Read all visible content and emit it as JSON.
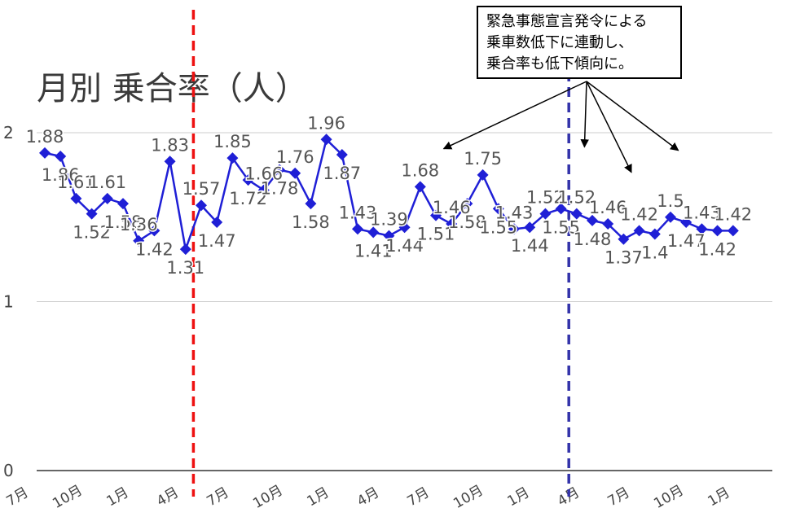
{
  "chart_data": {
    "type": "line",
    "title": "月別 乗合率（人）",
    "xlabel": "",
    "ylabel": "",
    "ylim": [
      0,
      2
    ],
    "yticks": [
      "0",
      "1",
      "2"
    ],
    "x_tick_labels": [
      "7月",
      "10月",
      "1月",
      "4月",
      "7月",
      "10月",
      "1月",
      "4月",
      "7月",
      "10月",
      "1月",
      "4月",
      "7月",
      "10月",
      "1月"
    ],
    "grid": true,
    "legend": "none",
    "series": [
      {
        "color": "#1f1fd6",
        "marker": "diamond",
        "values": [
          1.88,
          1.86,
          1.61,
          1.52,
          1.61,
          1.58,
          1.36,
          1.42,
          1.83,
          1.31,
          1.57,
          1.47,
          1.85,
          1.72,
          1.66,
          1.78,
          1.76,
          1.58,
          1.96,
          1.87,
          1.43,
          1.41,
          1.39,
          1.44,
          1.68,
          1.51,
          1.46,
          1.58,
          1.75,
          1.55,
          1.43,
          1.44,
          1.52,
          1.55,
          1.52,
          1.48,
          1.46,
          1.37,
          1.42,
          1.4,
          1.5,
          1.47,
          1.43,
          1.42,
          1.42
        ],
        "data_labels": [
          "1.88",
          "1.86",
          "1.61",
          "1.52",
          "1.61",
          "1.58",
          "1.36",
          "1.42",
          "1.83",
          "1.31",
          "1.57",
          "1.47",
          "1.85",
          "1.72",
          "1.66",
          "1.78",
          "1.76",
          "1.58",
          "1.96",
          "1.87",
          "1.43",
          "1.41",
          "1.39",
          "1.44",
          "1.68",
          "1.51",
          "1.46",
          "1.58",
          "1.75",
          "1.55",
          "1.43",
          "1.44",
          "1.52",
          "1.55",
          "1.52",
          "1.48",
          "1.46",
          "1.37",
          "1.42",
          "1.4",
          "1.5",
          "1.47",
          "1.43",
          "1.42",
          "1.42"
        ]
      }
    ],
    "reference_lines": [
      {
        "x_index": 9.5,
        "color": "#ee1111",
        "style": "dashed"
      },
      {
        "x_index": 33.5,
        "color": "#3333aa",
        "style": "dashed"
      }
    ],
    "annotation": {
      "lines": [
        "緊急事態宣言発令による",
        "乗車数低下に連動し、",
        "乗合率も低下傾向に。"
      ],
      "arrow_targets": [
        25.5,
        34.5,
        37.5,
        40.5
      ]
    }
  }
}
